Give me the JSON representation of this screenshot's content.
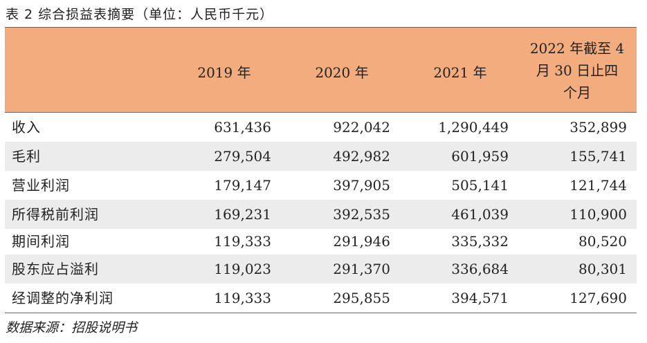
{
  "caption": "表 2 综合损益表摘要（单位：人民币千元）",
  "headers": [
    "2019 年",
    "2020 年",
    "2021 年",
    "2022 年截至 4 月 30 日止四 个月"
  ],
  "header_lines": [
    "2022 年截至 4",
    "月 30 日止四",
    "个月"
  ],
  "rows": [
    {
      "label": "收入",
      "values": [
        "631,436",
        "922,042",
        "1,290,449",
        "352,899"
      ]
    },
    {
      "label": "毛利",
      "values": [
        "279,504",
        "492,982",
        "601,959",
        "155,741"
      ]
    },
    {
      "label": "营业利润",
      "values": [
        "179,147",
        "397,905",
        "505,141",
        "121,744"
      ]
    },
    {
      "label": "所得税前利润",
      "values": [
        "169,231",
        "392,535",
        "461,039",
        "110,900"
      ]
    },
    {
      "label": "期间利润",
      "values": [
        "119,333",
        "291,946",
        "335,332",
        "80,520"
      ]
    },
    {
      "label": "股东应占溢利",
      "values": [
        "119,023",
        "291,370",
        "336,684",
        "80,301"
      ]
    },
    {
      "label": "经调整的净利润",
      "values": [
        "119,333",
        "295,855",
        "394,571",
        "127,690"
      ]
    }
  ],
  "source": "数据来源：招股说明书"
}
